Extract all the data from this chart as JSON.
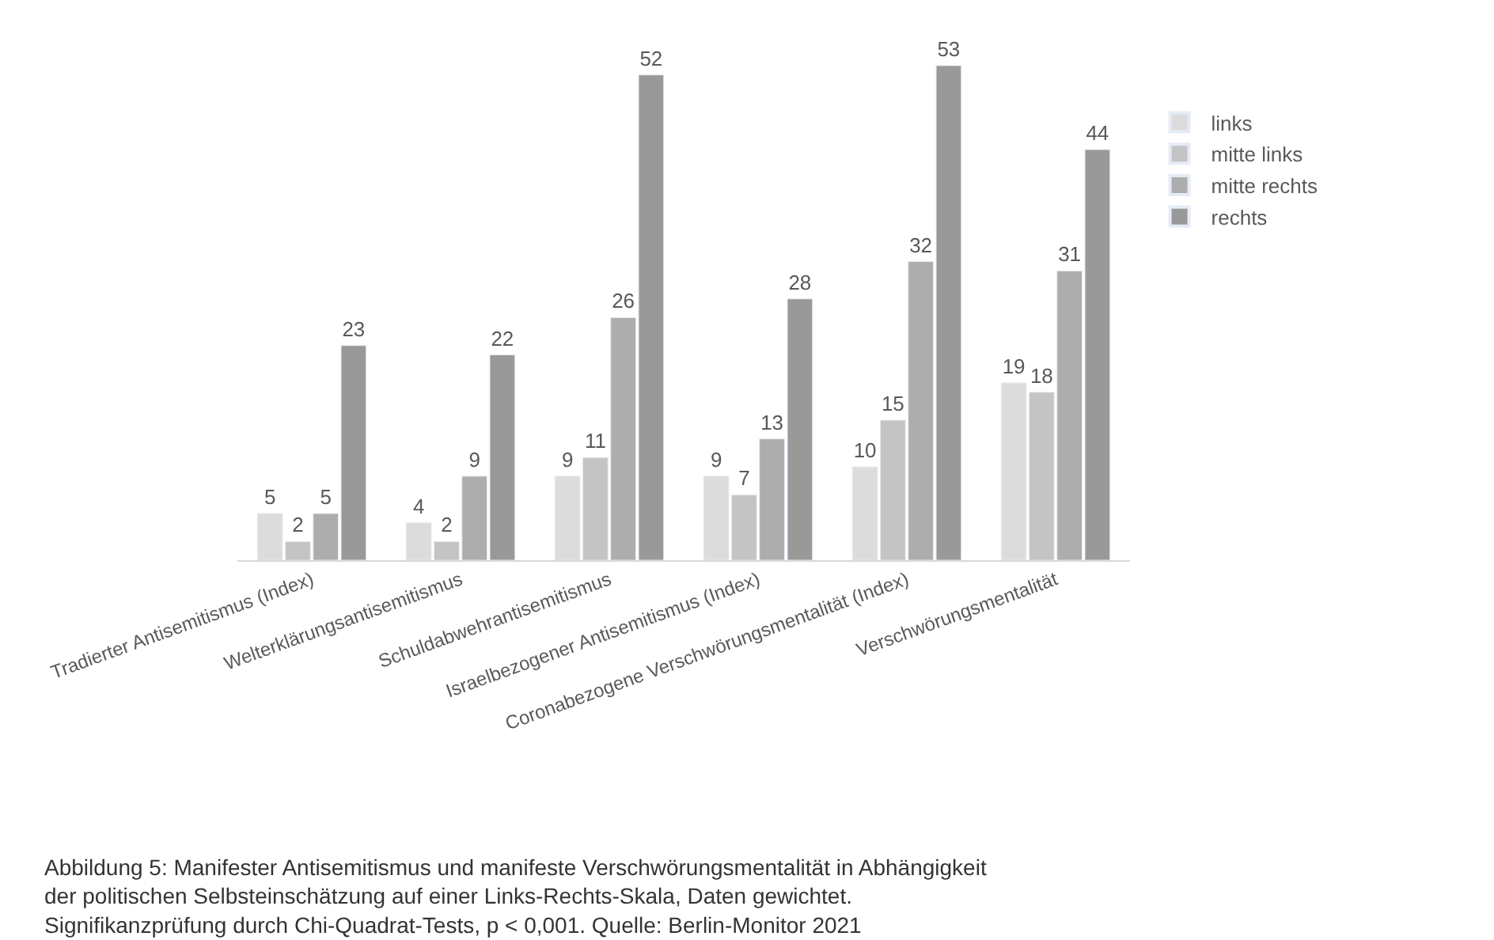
{
  "chart_data": {
    "type": "bar",
    "categories": [
      "Tradierter Antisemitismus (Index)",
      "Welterklärungsantisemitismus",
      "Schuldabwehrantisemitismus",
      "Israelbezogener Antisemitismus (Index)",
      "Coronabezogene Verschwörungsmentalität (Index)",
      "Verschwörungsmentalität"
    ],
    "series": [
      {
        "name": "links",
        "color": "#dcdcdc",
        "values": [
          5,
          4,
          9,
          9,
          10,
          19
        ]
      },
      {
        "name": "mitte links",
        "color": "#c4c4c4",
        "values": [
          2,
          2,
          11,
          7,
          15,
          18
        ]
      },
      {
        "name": "mitte rechts",
        "color": "#adadad",
        "values": [
          5,
          9,
          26,
          13,
          32,
          31
        ]
      },
      {
        "name": "rechts",
        "color": "#999999",
        "values": [
          23,
          22,
          52,
          28,
          53,
          44
        ]
      }
    ],
    "data_labels": true,
    "legend": "right",
    "annotations": [
      "Abbildung 5: Manifester Antisemitismus und manifeste Verschwörungsmentalität in Abhängigkeit\nder politischen Selbsteinschätzung auf einer Links-Rechts-Skala, Daten gewichtet.\nSignifikanzprüfung durch Chi-Quadrat-Tests, p < 0,001. Quelle: Berlin-Monitor 2021"
    ]
  }
}
